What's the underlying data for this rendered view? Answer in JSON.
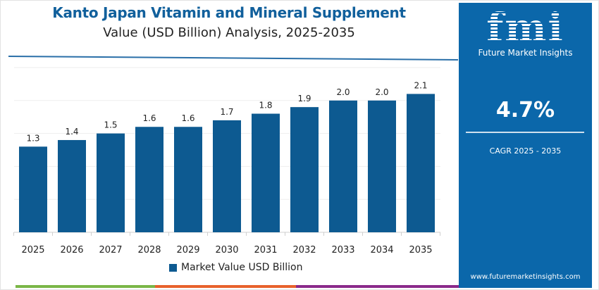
{
  "header": {
    "title": "Kanto Japan Vitamin and Mineral Supplement",
    "subtitle": "Value (USD Billion) Analysis, 2025-2035"
  },
  "side_panel": {
    "logo_text": "fmi",
    "brand_name": "Future Market Insights",
    "cagr_value": "4.7%",
    "cagr_label": "CAGR 2025 - 2035",
    "website": "www.futuremarketinsights.com"
  },
  "colors": {
    "bar": "#0d5a91",
    "title": "#11609c",
    "panel": "#0b67aa",
    "stripe_green": "#7ab648",
    "stripe_orange": "#e8622c",
    "stripe_purple": "#8b2a8b"
  },
  "chart_data": {
    "type": "bar",
    "title": "Kanto Japan Vitamin and Mineral Supplement Value (USD Billion) Analysis, 2025-2035",
    "categories": [
      "2025",
      "2026",
      "2027",
      "2028",
      "2029",
      "2030",
      "2031",
      "2032",
      "2033",
      "2034",
      "2035"
    ],
    "series": [
      {
        "name": "Market Value USD Billion",
        "values": [
          1.3,
          1.4,
          1.5,
          1.6,
          1.6,
          1.7,
          1.8,
          1.9,
          2.0,
          2.0,
          2.1
        ],
        "labels": [
          "1.3",
          "1.4",
          "1.5",
          "1.6",
          "1.6",
          "1.7",
          "1.8",
          "1.9",
          "2.0",
          "2.0",
          "2.1"
        ]
      }
    ],
    "xlabel": "",
    "ylabel": "",
    "ylim": [
      0,
      2.5
    ],
    "grid": true,
    "legend": "bottom"
  }
}
